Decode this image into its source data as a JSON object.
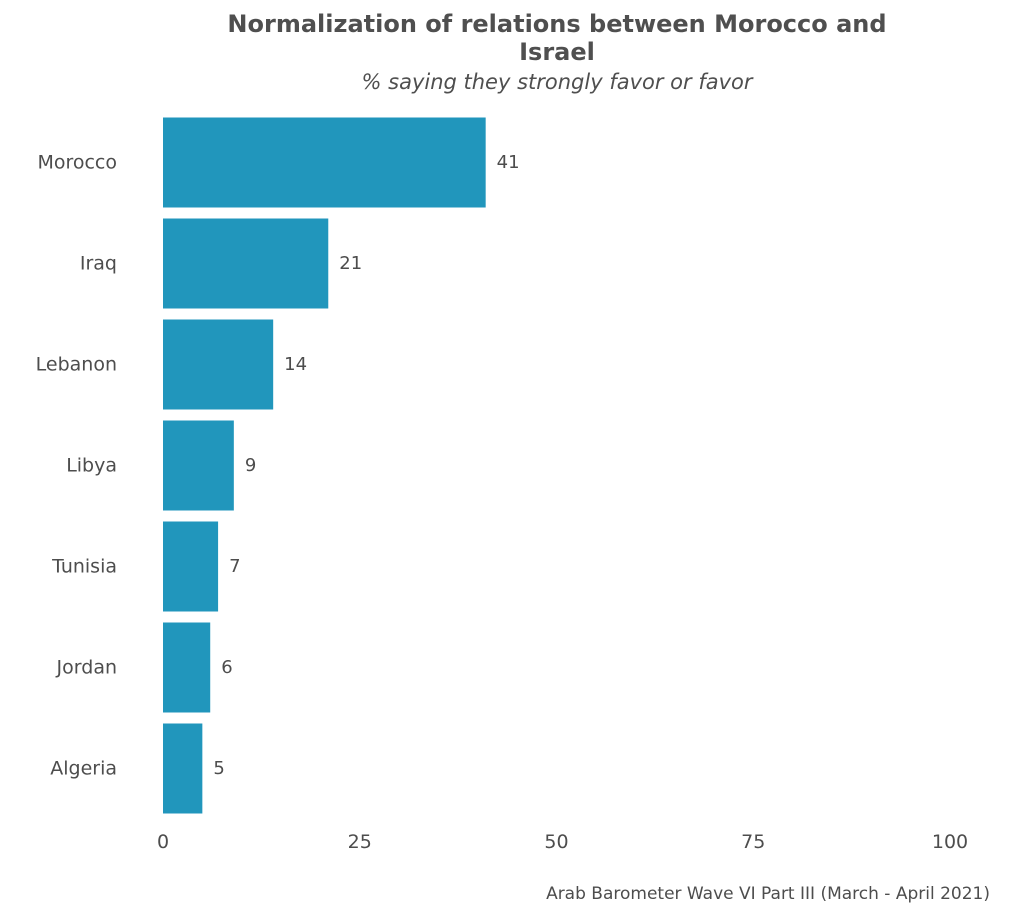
{
  "chart_data": {
    "type": "bar",
    "orientation": "horizontal",
    "title": "Normalization of relations between Morocco and Israel",
    "subtitle": "% saying they strongly favor or favor",
    "categories": [
      "Morocco",
      "Iraq",
      "Lebanon",
      "Libya",
      "Tunisia",
      "Jordan",
      "Algeria"
    ],
    "values": [
      41,
      21,
      14,
      9,
      7,
      6,
      5
    ],
    "data_labels": [
      "41",
      "21",
      "14",
      "9",
      "7",
      "6",
      "5"
    ],
    "xlim": [
      0,
      100
    ],
    "x_ticks": [
      0,
      25,
      50,
      75,
      100
    ],
    "xlabel": "",
    "ylabel": "",
    "grid": false,
    "legend": "none",
    "bar_color": "#2196bc",
    "caption": "Arab Barometer Wave VI Part III (March - April 2021)"
  }
}
